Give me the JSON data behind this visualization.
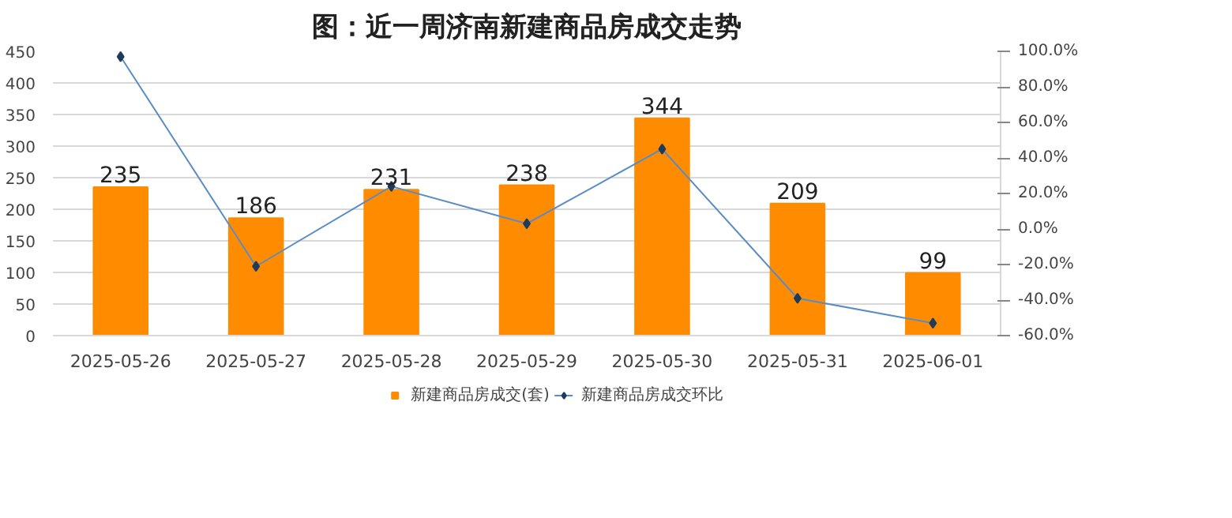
{
  "chart_data": {
    "type": "bar",
    "title": "图：近一周济南新建商品房成交走势",
    "categories": [
      "2025-05-26",
      "2025-05-27",
      "2025-05-28",
      "2025-05-29",
      "2025-05-30",
      "2025-05-31",
      "2025-06-01"
    ],
    "series": [
      {
        "name": "新建商品房成交(套)",
        "color": "#ff8c00",
        "values": [
          235,
          186,
          231,
          238,
          344,
          209,
          99
        ],
        "value_labels": [
          "235",
          "186",
          "231",
          "238",
          "344",
          "209",
          "99"
        ]
      },
      {
        "name": "新建商品房成交环比",
        "type": "line",
        "axis": "y2",
        "color": "#5b8cc4",
        "marker": "diamond",
        "values": [
          97,
          -21,
          24,
          3,
          45,
          -39,
          -53
        ]
      }
    ],
    "ylim": [
      0,
      450
    ],
    "yticks": [
      0,
      50,
      100,
      150,
      200,
      250,
      300,
      350,
      400,
      450
    ],
    "y2lim": [
      -60,
      100
    ],
    "y2ticks": [
      {
        "value": -60,
        "label": "-60.0%"
      },
      {
        "value": -40,
        "label": "-40.0%"
      },
      {
        "value": -20,
        "label": "-20.0%"
      },
      {
        "value": 0,
        "label": "0.0%"
      },
      {
        "value": 20,
        "label": "20.0%"
      },
      {
        "value": 40,
        "label": "40.0%"
      },
      {
        "value": 60,
        "label": "60.0%"
      },
      {
        "value": 80,
        "label": "80.0%"
      },
      {
        "value": 100,
        "label": "100.0%"
      }
    ],
    "grid": "y",
    "legend": "bottom"
  }
}
